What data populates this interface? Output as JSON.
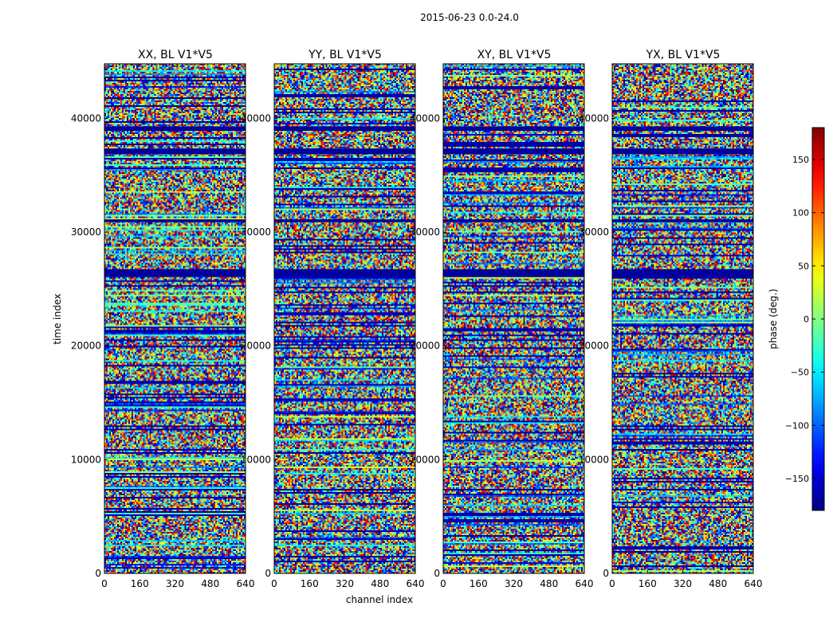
{
  "chart_data": {
    "type": "heatmap",
    "suptitle": "2015-06-23 0.0-24.0",
    "xlabel": "channel index",
    "ylabel": "time index",
    "xlim": [
      0,
      640
    ],
    "ylim": [
      0,
      44800
    ],
    "xticks": [
      0,
      160,
      320,
      480,
      640
    ],
    "yticks": [
      0,
      10000,
      20000,
      30000,
      40000
    ],
    "panels": [
      {
        "title": "XX, BL V1*V5",
        "polarization": "XX"
      },
      {
        "title": "YY, BL V1*V5",
        "polarization": "YY"
      },
      {
        "title": "XY, BL V1*V5",
        "polarization": "XY"
      },
      {
        "title": "YX, BL V1*V5",
        "polarization": "YX"
      }
    ],
    "colorbar": {
      "label": "phase (deg.)",
      "range": [
        -180,
        180
      ],
      "ticks": [
        -150,
        -100,
        -50,
        0,
        50,
        100,
        150
      ],
      "colormap": "jet"
    },
    "flagged_bands": [
      {
        "center": 39100,
        "width": 400
      },
      {
        "center": 37100,
        "width": 500
      },
      {
        "center": 26400,
        "width": 700
      },
      {
        "center": 31000,
        "width": 250
      }
    ]
  },
  "colors": {
    "jet": [
      "#00007f",
      "#0000ff",
      "#007fff",
      "#00ffff",
      "#7fff7f",
      "#ffff00",
      "#ff7f00",
      "#ff0000",
      "#7f0000"
    ],
    "axis": "#000000"
  }
}
